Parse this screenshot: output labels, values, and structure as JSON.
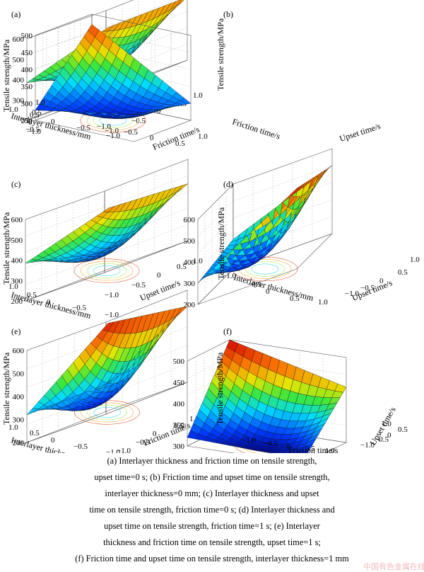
{
  "chart_data": [
    {
      "type": "surface3d",
      "panel_label": "(a)",
      "zlabel": "Tensile strength/MPa",
      "xlabel": "Friction time/s",
      "ylabel": "Interlayer thickness/mm",
      "zlim": [
        200,
        600
      ],
      "zticks": [
        "300",
        "400",
        "500",
        "600"
      ],
      "xticks": [
        "−1.0",
        "−0.5",
        "0",
        "0.5",
        "1.0"
      ],
      "yticks": [
        "1.0",
        "0.5",
        "0",
        "−0.5",
        "−1.0"
      ],
      "xlim": [
        -1,
        1
      ],
      "ylim": [
        -1,
        1
      ],
      "corners_z": {
        "x-1_y-1": 300,
        "x1_y-1": 510,
        "x-1_y1": 385,
        "x1_y1": 500
      },
      "center_z": 300
    },
    {
      "type": "surface3d",
      "panel_label": "(b)",
      "zlabel": "Tensile strength/MPa",
      "xlabel": "Upset time/s",
      "ylabel": "Friction time/s",
      "zlim": [
        250,
        500
      ],
      "zticks": [
        "250",
        "300",
        "350",
        "400",
        "450",
        "500"
      ],
      "xticks": [
        "−1.0",
        "−0.5",
        "0",
        "0.5",
        "1.0"
      ],
      "yticks": [
        "1.0",
        "0.5",
        "0",
        "−0.5",
        "−1.0"
      ],
      "xlim": [
        -1,
        1
      ],
      "ylim": [
        -1,
        1
      ],
      "corners_z": {
        "x-1_y-1": 470,
        "x1_y-1": 300,
        "x-1_y1": 280,
        "x1_y1": 330
      },
      "center_z": 280
    },
    {
      "type": "surface3d",
      "panel_label": "(c)",
      "zlabel": "Tensile strength/MPa",
      "xlabel": "Upset time/s",
      "ylabel": "Interlayer thickness/mm",
      "zlim": [
        200,
        600
      ],
      "zticks": [
        "200",
        "300",
        "400",
        "500",
        "600"
      ],
      "xticks": [
        "−1.0",
        "−0.5",
        "0",
        "0.5",
        "1.0"
      ],
      "yticks": [
        "1.0",
        "0.5",
        "0",
        "−0.5",
        "−1.0"
      ],
      "xlim": [
        -1,
        1
      ],
      "ylim": [
        -1,
        1
      ],
      "corners_z": {
        "x-1_y-1": 300,
        "x1_y-1": 480,
        "x-1_y1": 385,
        "x1_y1": 500
      },
      "center_z": 290
    },
    {
      "type": "surface3d",
      "panel_label": "(d)",
      "zlabel": "Tensile strength/MPa",
      "xlabel": "Upset time/s",
      "ylabel": "Interlayer thickness/mm",
      "zlim": [
        200,
        600
      ],
      "zticks": [
        "200",
        "300",
        "400",
        "500",
        "600"
      ],
      "xticks": [
        "−1.0",
        "−0.5",
        "0",
        "0.5",
        "1.0"
      ],
      "yticks": [
        "−1.0",
        "−0.5",
        "0",
        "0.5",
        "1.0"
      ],
      "xlim": [
        -1,
        1
      ],
      "ylim": [
        -1,
        1
      ],
      "corners_z": {
        "x-1_y-1": 340,
        "x1_y-1": 520,
        "x-1_y1": 300,
        "x1_y1": 580
      },
      "center_z": 260
    },
    {
      "type": "surface3d",
      "panel_label": "(e)",
      "zlabel": "Tensile strength/MPa",
      "xlabel": "Friction time/s",
      "ylabel": "Interlayer thickness/mm",
      "zlim": [
        200,
        600
      ],
      "zticks": [
        "200",
        "300",
        "400",
        "500",
        "600"
      ],
      "xticks": [
        "−1.0",
        "−0.5",
        "0",
        "0.5",
        "1.0"
      ],
      "yticks": [
        "1.0",
        "0.5",
        "0",
        "−0.5",
        "−1.0"
      ],
      "xlim": [
        -1,
        1
      ],
      "ylim": [
        -1,
        1
      ],
      "corners_z": {
        "x-1_y-1": 330,
        "x1_y-1": 530,
        "x-1_y1": 320,
        "x1_y1": 580
      },
      "center_z": 260
    },
    {
      "type": "surface3d",
      "panel_label": "(f)",
      "zlabel": "Tensile strength/MPa",
      "xlabel": "Friction time/s",
      "ylabel": "Upset time/s",
      "zlim": [
        300,
        500
      ],
      "zticks": [
        "300",
        "350",
        "400",
        "450",
        "500"
      ],
      "xticks": [
        "−1.0",
        "−0.5",
        "0",
        "0.5",
        "1.0"
      ],
      "yticks": [
        "1.0",
        "0.5",
        "0",
        "−0.5",
        "−1.0"
      ],
      "xlim": [
        -1,
        1
      ],
      "ylim": [
        -1,
        1
      ],
      "corners_z": {
        "x-1_y-1": 500,
        "x1_y-1": 430,
        "x-1_y1": 320,
        "x1_y1": 310
      },
      "center_z": 330
    }
  ],
  "caption": [
    "(a) Interlayer thickness and friction time on tensile strength,",
    "upset time=0 s; (b) Friction time and upset time on tensile strength,",
    "interlayer thickness=0 mm; (c) Interlayer thickness and upset",
    "time on tensile strength, friction time=0 s; (d) Interlayer thickness and",
    "upset time on tensile strength, friction time=1 s; (e) Interlayer",
    "thickness and friction time on tensile strength, upset time=1 s;",
    "(f) Friction time and upset time on tensile strength, interlayer thickness=1 mm"
  ],
  "watermark": "中国有色金属在线"
}
